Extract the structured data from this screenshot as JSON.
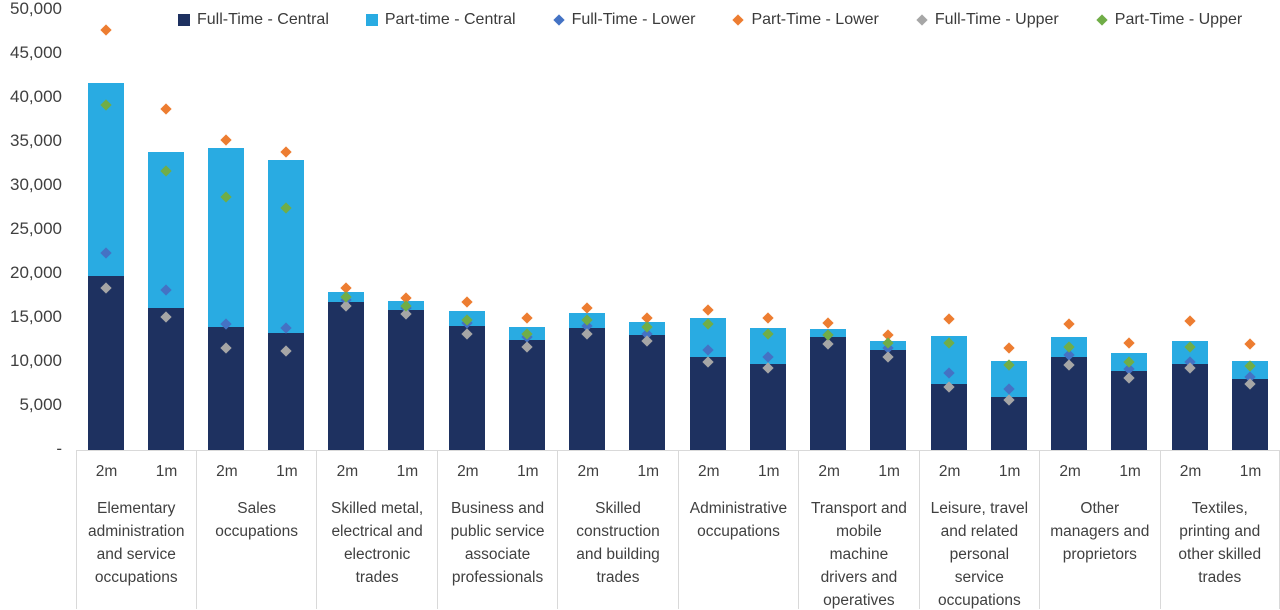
{
  "chart_data": {
    "type": "bar",
    "stacked": true,
    "title": "",
    "xlabel": "",
    "ylabel": "",
    "grid": false,
    "legend_position": "top",
    "y_axis": {
      "min": 0,
      "max": 50000,
      "tick_interval": 5000,
      "tick_labels": [
        "50,000",
        "45,000",
        "40,000",
        "35,000",
        "30,000",
        "25,000",
        "20,000",
        "15,000",
        "10,000",
        "5,000",
        "-"
      ]
    },
    "colors": {
      "full_time_central": "#1e3160",
      "part_time_central": "#29abe2",
      "full_time_lower": "#4472c4",
      "part_time_lower": "#ed7d31",
      "full_time_upper": "#a6a6a6",
      "part_time_upper": "#70ad47",
      "axis_text": "#3f3f3f",
      "gridline": "#d9d9d9"
    },
    "legend": [
      {
        "label": "Full-Time - Central",
        "marker": "square",
        "color": "#1e3160"
      },
      {
        "label": "Part-time - Central",
        "marker": "square",
        "color": "#29abe2"
      },
      {
        "label": "Full-Time - Lower",
        "marker": "diamond",
        "color": "#4472c4"
      },
      {
        "label": "Part-Time - Lower",
        "marker": "diamond",
        "color": "#ed7d31"
      },
      {
        "label": "Full-Time - Upper",
        "marker": "diamond",
        "color": "#a6a6a6"
      },
      {
        "label": "Part-Time - Upper",
        "marker": "diamond",
        "color": "#70ad47"
      }
    ],
    "groups": [
      {
        "label": "Elementary administration and service occupations",
        "bars": [
          {
            "x": "2m",
            "full_time_central": 19700,
            "part_time_central": 21900,
            "total": 41600,
            "full_time_lower": 22300,
            "full_time_upper": 18300,
            "part_time_lower": 47600,
            "part_time_upper": 39100
          },
          {
            "x": "1m",
            "full_time_central": 16000,
            "part_time_central": 17800,
            "total": 33800,
            "full_time_lower": 18100,
            "full_time_upper": 15000,
            "part_time_lower": 38600,
            "part_time_upper": 31600
          }
        ]
      },
      {
        "label": "Sales occupations",
        "bars": [
          {
            "x": "2m",
            "full_time_central": 13900,
            "part_time_central": 20300,
            "total": 34200,
            "full_time_lower": 14200,
            "full_time_upper": 11500,
            "part_time_lower": 35100,
            "part_time_upper": 28600
          },
          {
            "x": "1m",
            "full_time_central": 13200,
            "part_time_central": 19600,
            "total": 32800,
            "full_time_lower": 13700,
            "full_time_upper": 11100,
            "part_time_lower": 33700,
            "part_time_upper": 27400
          }
        ]
      },
      {
        "label": "Skilled metal, electrical and electronic trades",
        "bars": [
          {
            "x": "2m",
            "full_time_central": 16700,
            "part_time_central": 1100,
            "total": 17800,
            "full_time_lower": 16900,
            "full_time_upper": 16200,
            "part_time_lower": 18300,
            "part_time_upper": 17300
          },
          {
            "x": "1m",
            "full_time_central": 15800,
            "part_time_central": 1000,
            "total": 16800,
            "full_time_lower": 16000,
            "full_time_upper": 15300,
            "part_time_lower": 17200,
            "part_time_upper": 16300
          }
        ]
      },
      {
        "label": "Business and public service associate professionals",
        "bars": [
          {
            "x": "2m",
            "full_time_central": 14000,
            "part_time_central": 1700,
            "total": 15700,
            "full_time_lower": 14300,
            "full_time_upper": 13100,
            "part_time_lower": 16700,
            "part_time_upper": 14700
          },
          {
            "x": "1m",
            "full_time_central": 12400,
            "part_time_central": 1500,
            "total": 13900,
            "full_time_lower": 12700,
            "full_time_upper": 11600,
            "part_time_lower": 14900,
            "part_time_upper": 13100
          }
        ]
      },
      {
        "label": "Skilled construction and building trades",
        "bars": [
          {
            "x": "2m",
            "full_time_central": 13700,
            "part_time_central": 1700,
            "total": 15400,
            "full_time_lower": 14000,
            "full_time_upper": 13100,
            "part_time_lower": 16000,
            "part_time_upper": 14700
          },
          {
            "x": "1m",
            "full_time_central": 12900,
            "part_time_central": 1500,
            "total": 14400,
            "full_time_lower": 13100,
            "full_time_upper": 12300,
            "part_time_lower": 14900,
            "part_time_upper": 13900
          }
        ]
      },
      {
        "label": "Administrative occupations",
        "bars": [
          {
            "x": "2m",
            "full_time_central": 10500,
            "part_time_central": 4400,
            "total": 14900,
            "full_time_lower": 11300,
            "full_time_upper": 9900,
            "part_time_lower": 15800,
            "part_time_upper": 14200
          },
          {
            "x": "1m",
            "full_time_central": 9700,
            "part_time_central": 4000,
            "total": 13700,
            "full_time_lower": 10400,
            "full_time_upper": 9200,
            "part_time_lower": 14900,
            "part_time_upper": 13100
          }
        ]
      },
      {
        "label": "Transport and mobile machine drivers and operatives",
        "bars": [
          {
            "x": "2m",
            "full_time_central": 12700,
            "part_time_central": 900,
            "total": 13600,
            "full_time_lower": 12900,
            "full_time_upper": 11900,
            "part_time_lower": 14300,
            "part_time_upper": 12900
          },
          {
            "x": "1m",
            "full_time_central": 11300,
            "part_time_central": 1000,
            "total": 12300,
            "full_time_lower": 11500,
            "full_time_upper": 10500,
            "part_time_lower": 13000,
            "part_time_upper": 12100
          }
        ]
      },
      {
        "label": "Leisure, travel and related personal service occupations",
        "bars": [
          {
            "x": "2m",
            "full_time_central": 7400,
            "part_time_central": 5400,
            "total": 12800,
            "full_time_lower": 8600,
            "full_time_upper": 7000,
            "part_time_lower": 14800,
            "part_time_upper": 12100
          },
          {
            "x": "1m",
            "full_time_central": 5900,
            "part_time_central": 4100,
            "total": 10000,
            "full_time_lower": 6800,
            "full_time_upper": 5600,
            "part_time_lower": 11500,
            "part_time_upper": 9500
          }
        ]
      },
      {
        "label": "Other managers and proprietors",
        "bars": [
          {
            "x": "2m",
            "full_time_central": 10500,
            "part_time_central": 2200,
            "total": 12700,
            "full_time_lower": 10700,
            "full_time_upper": 9500,
            "part_time_lower": 14200,
            "part_time_upper": 11600
          },
          {
            "x": "1m",
            "full_time_central": 8900,
            "part_time_central": 2000,
            "total": 10900,
            "full_time_lower": 9100,
            "full_time_upper": 8100,
            "part_time_lower": 12100,
            "part_time_upper": 9900
          }
        ]
      },
      {
        "label": "Textiles, printing and other skilled trades",
        "bars": [
          {
            "x": "2m",
            "full_time_central": 9700,
            "part_time_central": 2600,
            "total": 12300,
            "full_time_lower": 9900,
            "full_time_upper": 9200,
            "part_time_lower": 14500,
            "part_time_upper": 11600
          },
          {
            "x": "1m",
            "full_time_central": 8000,
            "part_time_central": 2000,
            "total": 10000,
            "full_time_lower": 8200,
            "full_time_upper": 7400,
            "part_time_lower": 11900,
            "part_time_upper": 9400
          }
        ]
      }
    ]
  }
}
